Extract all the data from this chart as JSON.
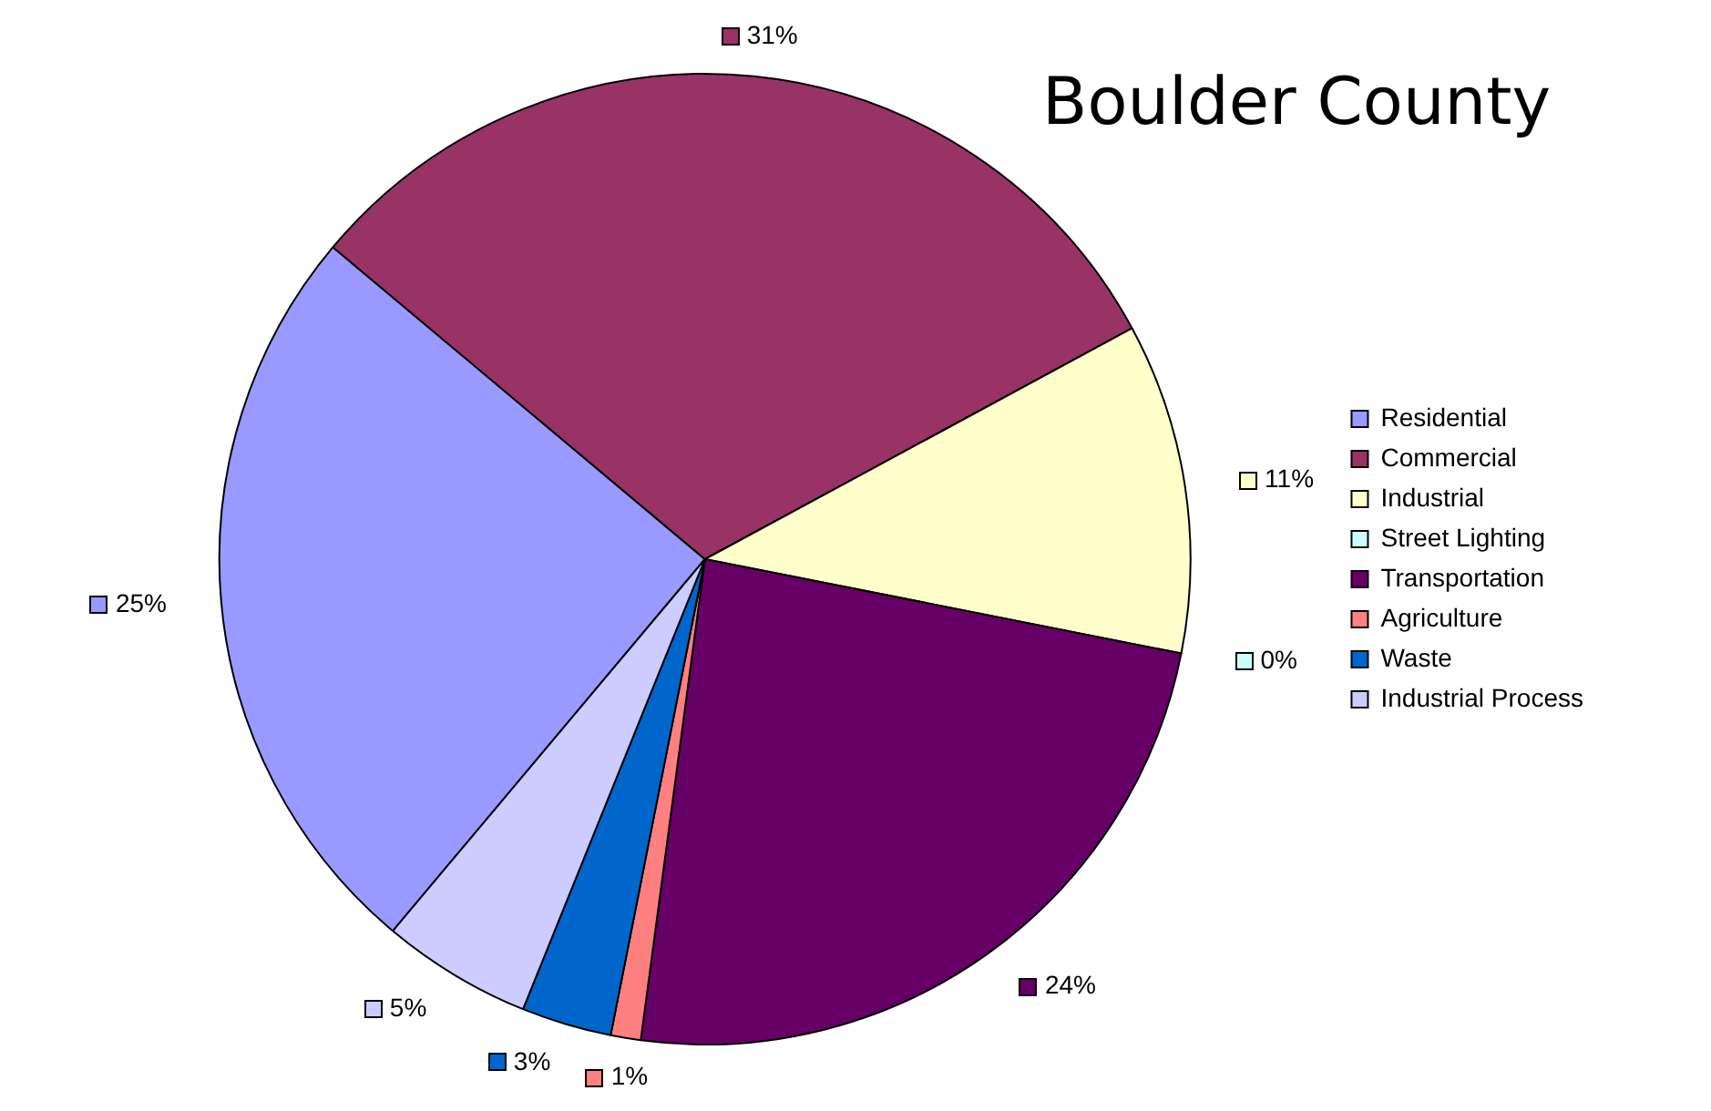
{
  "chart_data": {
    "type": "pie",
    "title": "Boulder County",
    "categories": [
      "Residential",
      "Commercial",
      "Industrial",
      "Street Lighting",
      "Transportation",
      "Agriculture",
      "Waste",
      "Industrial Process"
    ],
    "values": [
      25,
      31,
      11,
      0,
      24,
      1,
      3,
      5
    ],
    "colors": [
      "#9999ff",
      "#993366",
      "#ffffcc",
      "#ccffff",
      "#660066",
      "#ff8080",
      "#0066cc",
      "#ccccff"
    ],
    "value_labels": [
      "25%",
      "31%",
      "11%",
      "0%",
      "24%",
      "1%",
      "3%",
      "5%"
    ],
    "legend": "right"
  }
}
